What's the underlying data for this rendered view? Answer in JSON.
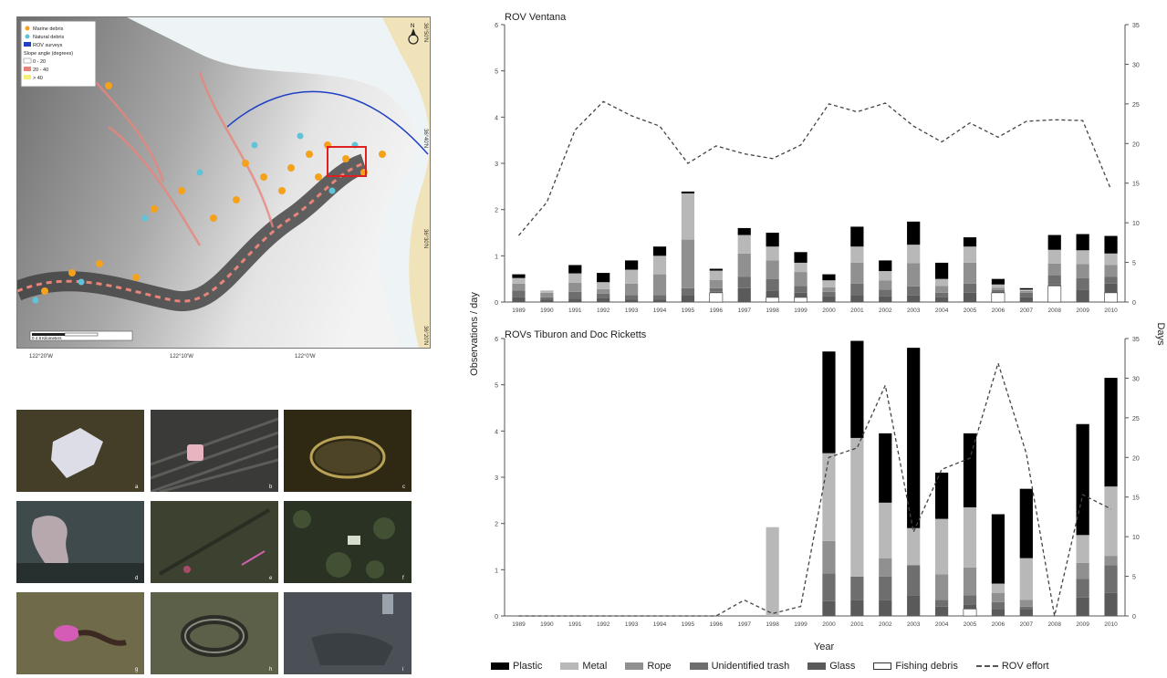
{
  "map": {
    "legend": {
      "items": [
        {
          "label": "Marine debris",
          "color": "#f4a21c"
        },
        {
          "label": "Natural debris",
          "color": "#5fc4d8"
        },
        {
          "label": "ROV surveys",
          "color": "#1f3fc4"
        }
      ],
      "slope_title": "Slope angle (degrees)",
      "slope_bins": [
        {
          "label": "0 - 20",
          "color": "#ffffff"
        },
        {
          "label": "20 - 40",
          "color": "#e8847a"
        },
        {
          "label": "> 40",
          "color": "#f4ef78"
        }
      ]
    },
    "lat_labels": [
      "36°50'N",
      "36°40'N",
      "36°30'N",
      "36°20'N"
    ],
    "lon_labels": [
      "122°20'W",
      "122°10'W",
      "122°0'W"
    ],
    "scale_label": "0  4  8  Kilometers",
    "north_label": "N"
  },
  "photos": {
    "letters": [
      "a",
      "b",
      "c",
      "d",
      "e",
      "f",
      "g",
      "h",
      "i"
    ]
  },
  "chart_data": [
    {
      "type": "bar",
      "title": "ROV Ventana",
      "stacked": true,
      "categories": [
        "1989",
        "1990",
        "1991",
        "1992",
        "1993",
        "1994",
        "1995",
        "1996",
        "1997",
        "1998",
        "1999",
        "2000",
        "2001",
        "2002",
        "2003",
        "2004",
        "2005",
        "2006",
        "2007",
        "2008",
        "2009",
        "2010"
      ],
      "ylabel": "Observations / day",
      "y2label": "Days",
      "ylim": [
        0,
        6
      ],
      "y2lim": [
        0,
        35
      ],
      "yticks": [
        "0",
        "1",
        "2",
        "3",
        "4",
        "5",
        "6"
      ],
      "y2ticks": [
        "0",
        "5",
        "10",
        "15",
        "20",
        "25",
        "30",
        "35"
      ],
      "series": [
        {
          "name": "Plastic",
          "color": "#000000",
          "values": [
            0.08,
            0,
            0.18,
            0.2,
            0.2,
            0.2,
            0.04,
            0.04,
            0.15,
            0.3,
            0.23,
            0.13,
            0.43,
            0.23,
            0.5,
            0.35,
            0.2,
            0.12,
            0.03,
            0.32,
            0.35,
            0.38
          ]
        },
        {
          "name": "Metal",
          "color": "#b8b8b8",
          "values": [
            0.12,
            0.05,
            0.2,
            0.15,
            0.3,
            0.4,
            1.0,
            0.2,
            0.4,
            0.3,
            0.2,
            0.15,
            0.35,
            0.2,
            0.4,
            0.15,
            0.35,
            0.07,
            0.03,
            0.3,
            0.3,
            0.25
          ]
        },
        {
          "name": "Rope",
          "color": "#909090",
          "values": [
            0.15,
            0.1,
            0.2,
            0.1,
            0.25,
            0.45,
            1.05,
            0.18,
            0.5,
            0.4,
            0.3,
            0.1,
            0.45,
            0.2,
            0.5,
            0.15,
            0.45,
            0.05,
            0.04,
            0.25,
            0.3,
            0.25
          ]
        },
        {
          "name": "Unidentified trash",
          "color": "#6e6e6e",
          "values": [
            0.15,
            0.05,
            0.15,
            0.1,
            0.1,
            0.1,
            0.15,
            0.08,
            0.25,
            0.25,
            0.15,
            0.1,
            0.25,
            0.15,
            0.2,
            0.1,
            0.2,
            0.03,
            0.1,
            0.2,
            0.25,
            0.15
          ]
        },
        {
          "name": "Glass",
          "color": "#5a5a5a",
          "values": [
            0.1,
            0.05,
            0.07,
            0.08,
            0.05,
            0.05,
            0.15,
            0.02,
            0.3,
            0.15,
            0.1,
            0.12,
            0.15,
            0.12,
            0.14,
            0.1,
            0.2,
            0.03,
            0.1,
            0.03,
            0.27,
            0.2
          ]
        },
        {
          "name": "Fishing debris",
          "color": "#ffffff",
          "values": [
            0,
            0,
            0,
            0,
            0,
            0,
            0,
            0.2,
            0,
            0.1,
            0.1,
            0,
            0,
            0,
            0,
            0,
            0,
            0.2,
            0,
            0.35,
            0,
            0.2
          ]
        }
      ],
      "line": {
        "name": "ROV effort",
        "values": [
          8.4,
          12.6,
          21.7,
          25.3,
          23.5,
          22.2,
          17.5,
          19.7,
          18.7,
          18.1,
          19.8,
          25.0,
          24.0,
          25.1,
          22.2,
          20.2,
          22.6,
          20.8,
          22.8,
          23.0,
          22.9,
          14.2
        ]
      }
    },
    {
      "type": "bar",
      "title": "ROVs Tiburon and Doc Ricketts",
      "stacked": true,
      "categories": [
        "1989",
        "1990",
        "1991",
        "1992",
        "1993",
        "1994",
        "1995",
        "1996",
        "1997",
        "1998",
        "1999",
        "2000",
        "2001",
        "2002",
        "2003",
        "2004",
        "2005",
        "2006",
        "2007",
        "2008",
        "2009",
        "2010"
      ],
      "xlabel": "Year",
      "ylabel": "Observations / day",
      "y2label": "Days",
      "ylim": [
        0,
        6
      ],
      "y2lim": [
        0,
        35
      ],
      "yticks": [
        "0",
        "1",
        "2",
        "3",
        "4",
        "5",
        "6"
      ],
      "y2ticks": [
        "0",
        "5",
        "10",
        "15",
        "20",
        "25",
        "30",
        "35"
      ],
      "series": [
        {
          "name": "Plastic",
          "color": "#000000",
          "values": [
            0,
            0,
            0,
            0,
            0,
            0,
            0,
            0,
            0,
            0,
            0,
            2.2,
            2.1,
            1.5,
            3.9,
            1.0,
            1.6,
            1.5,
            1.5,
            0,
            2.4,
            2.35
          ]
        },
        {
          "name": "Metal",
          "color": "#b8b8b8",
          "values": [
            0,
            0,
            0,
            0,
            0,
            0,
            0,
            0,
            0,
            1.92,
            0,
            1.9,
            3.0,
            1.2,
            0.8,
            1.2,
            1.3,
            0.2,
            0.9,
            0,
            0.6,
            1.5
          ]
        },
        {
          "name": "Rope",
          "color": "#909090",
          "values": [
            0,
            0,
            0,
            0,
            0,
            0,
            0,
            0,
            0,
            0,
            0,
            0.7,
            0,
            0.4,
            0,
            0.55,
            0.6,
            0.2,
            0.15,
            0,
            0.35,
            0.2
          ]
        },
        {
          "name": "Unidentified trash",
          "color": "#6e6e6e",
          "values": [
            0,
            0,
            0,
            0,
            0,
            0,
            0,
            0,
            0,
            0,
            0,
            0.6,
            0.5,
            0.5,
            0.65,
            0.15,
            0.2,
            0.15,
            0.05,
            0,
            0.4,
            0.6
          ]
        },
        {
          "name": "Glass",
          "color": "#5a5a5a",
          "values": [
            0,
            0,
            0,
            0,
            0,
            0,
            0,
            0,
            0,
            0,
            0,
            0.32,
            0.35,
            0.35,
            0.45,
            0.2,
            0.1,
            0.15,
            0.15,
            0,
            0.4,
            0.5
          ]
        },
        {
          "name": "Fishing debris",
          "color": "#ffffff",
          "values": [
            0,
            0,
            0,
            0,
            0,
            0,
            0,
            0,
            0,
            0,
            0,
            0,
            0,
            0,
            0,
            0,
            0.15,
            0,
            0,
            0,
            0,
            0
          ]
        }
      ],
      "line": {
        "name": "ROV effort",
        "values": [
          0,
          0,
          0,
          0,
          0,
          0,
          0,
          0,
          2.0,
          0.3,
          1.2,
          20.0,
          21.2,
          29.1,
          10.6,
          18.5,
          19.9,
          31.9,
          20.5,
          0,
          15.3,
          13.5
        ]
      }
    }
  ],
  "legend": [
    {
      "name": "Plastic",
      "color": "#000000",
      "style": "solid"
    },
    {
      "name": "Metal",
      "color": "#b8b8b8",
      "style": "solid"
    },
    {
      "name": "Rope",
      "color": "#909090",
      "style": "solid"
    },
    {
      "name": "Unidentified trash",
      "color": "#6e6e6e",
      "style": "solid"
    },
    {
      "name": "Glass",
      "color": "#5a5a5a",
      "style": "solid"
    },
    {
      "name": "Fishing debris",
      "color": "#ffffff",
      "style": "outline"
    },
    {
      "name": "ROV effort",
      "color": "#555555",
      "style": "dashed"
    }
  ]
}
